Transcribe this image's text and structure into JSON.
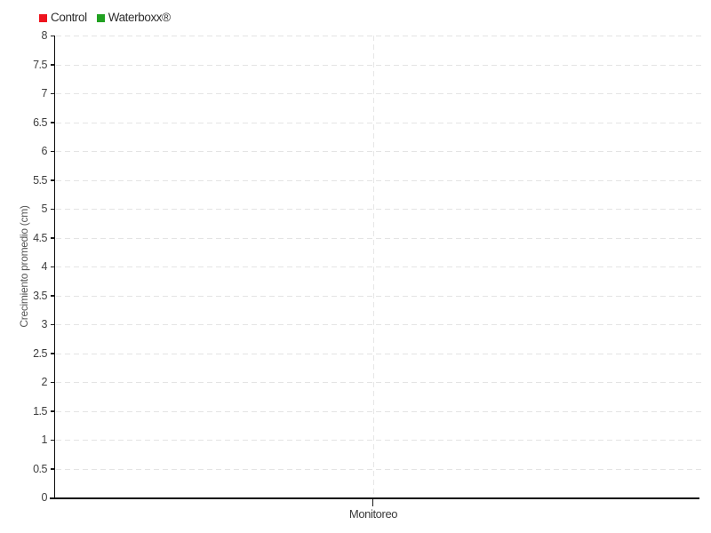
{
  "chart_data": {
    "type": "bar",
    "title": "",
    "categories": [
      "Monitoreo"
    ],
    "series": [
      {
        "name": "Control",
        "color": "#ee141e",
        "values": [
          0
        ]
      },
      {
        "name": "Waterboxx®",
        "color": "#21a121",
        "values": [
          0
        ]
      }
    ],
    "xlabel": "",
    "ylabel": "Crecimiento promedio (cm)",
    "ylim": [
      0,
      8
    ],
    "ytick_step": 0.5,
    "ytick_labels": [
      "0",
      "0.5",
      "1",
      "1.5",
      "2",
      "2.5",
      "3",
      "3.5",
      "4",
      "4.5",
      "5",
      "5.5",
      "6",
      "6.5",
      "7",
      "7.5",
      "8"
    ],
    "grid": true,
    "legend_position": "top-left"
  }
}
